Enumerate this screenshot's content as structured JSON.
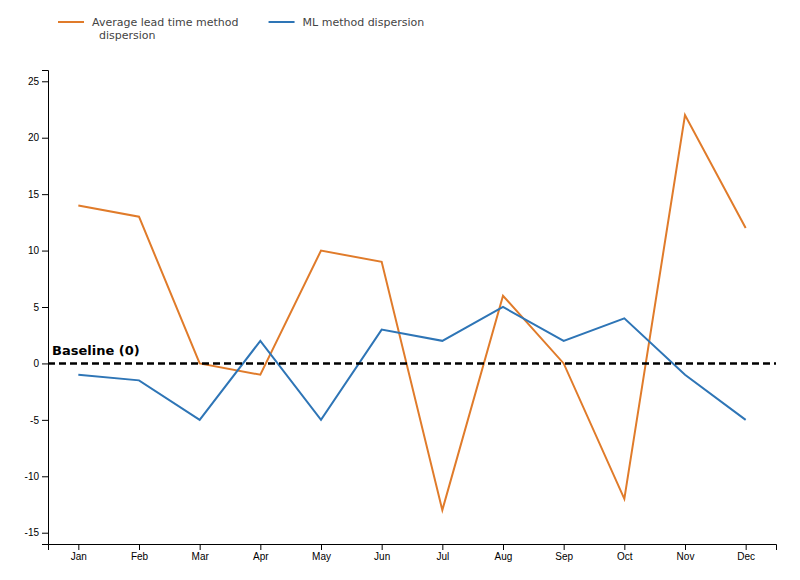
{
  "chart_data": {
    "type": "line",
    "categories": [
      "Jan",
      "Feb",
      "Mar",
      "Apr",
      "May",
      "Jun",
      "Jul",
      "Aug",
      "Sep",
      "Oct",
      "Nov",
      "Dec"
    ],
    "series": [
      {
        "name": "Average lead time method\n  dispersion",
        "color": "#E07B2A",
        "values": [
          14,
          13,
          0,
          -1,
          10,
          9,
          -13,
          6,
          0,
          -12,
          22,
          12
        ]
      },
      {
        "name": "ML method dispersion",
        "color": "#2E75B6",
        "values": [
          -1,
          -1.5,
          -5,
          2,
          -5,
          3,
          2,
          5,
          2,
          4,
          -1,
          -5
        ]
      }
    ],
    "annotations": [
      {
        "text": "Baseline (0)",
        "y": 0,
        "line_style": "dashed",
        "color": "#000000"
      }
    ],
    "ylim": [
      -16,
      26
    ],
    "yticks": [
      -15,
      -10,
      -5,
      0,
      5,
      10,
      15,
      20,
      25
    ],
    "grid": false,
    "legend": "upper left"
  }
}
